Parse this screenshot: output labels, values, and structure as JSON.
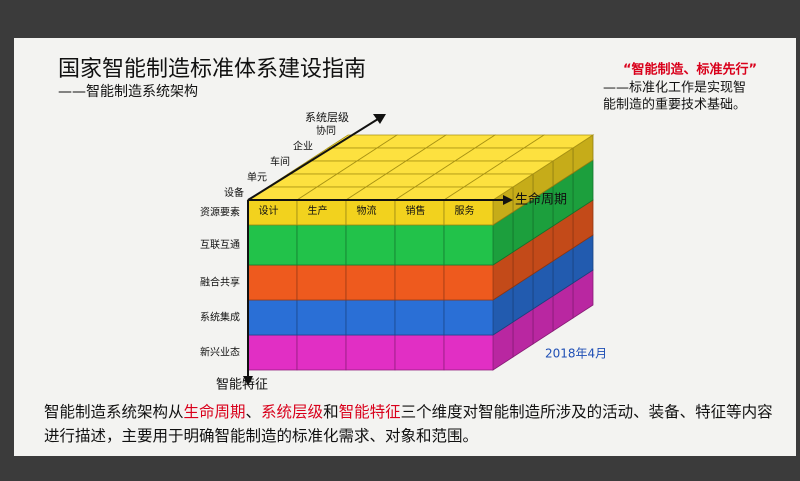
{
  "header": {
    "title": "国家智能制造标准体系建设指南",
    "subtitle": "——智能制造系统架构"
  },
  "quote": {
    "headline": "“智能制造、标准先行”",
    "lines": [
      "——标准化工作是实现智",
      "能制造的重要技术基础。"
    ]
  },
  "diagram": {
    "axes": {
      "vertical": "智能特征",
      "horizontal": "生命周期",
      "depth": "系统层级"
    },
    "lifecycle": [
      "设计",
      "生产",
      "物流",
      "销售",
      "服务"
    ],
    "levels": [
      "设备",
      "单元",
      "车间",
      "企业",
      "协同"
    ],
    "layers": [
      {
        "label": "资源要素",
        "color": "#f2d21e"
      },
      {
        "label": "互联互通",
        "color": "#22c24a"
      },
      {
        "label": "融合共享",
        "color": "#ee5a1e"
      },
      {
        "label": "系统集成",
        "color": "#2a6fd6"
      },
      {
        "label": "新兴业态",
        "color": "#e12fc4"
      }
    ],
    "date": "2018年4月"
  },
  "paragraph": [
    {
      "text": "智能制造系统架构从",
      "emphasis": false
    },
    {
      "text": "生命周期",
      "emphasis": true
    },
    {
      "text": "、",
      "emphasis": false
    },
    {
      "text": "系统层级",
      "emphasis": true
    },
    {
      "text": "和",
      "emphasis": false
    },
    {
      "text": "智能特征",
      "emphasis": true
    },
    {
      "text": "三个维度对智能制造所涉及的活动、装备、特征等内容进行描述，主要用于明确智能制造的标准化需求、对象和范围。",
      "emphasis": false
    }
  ]
}
